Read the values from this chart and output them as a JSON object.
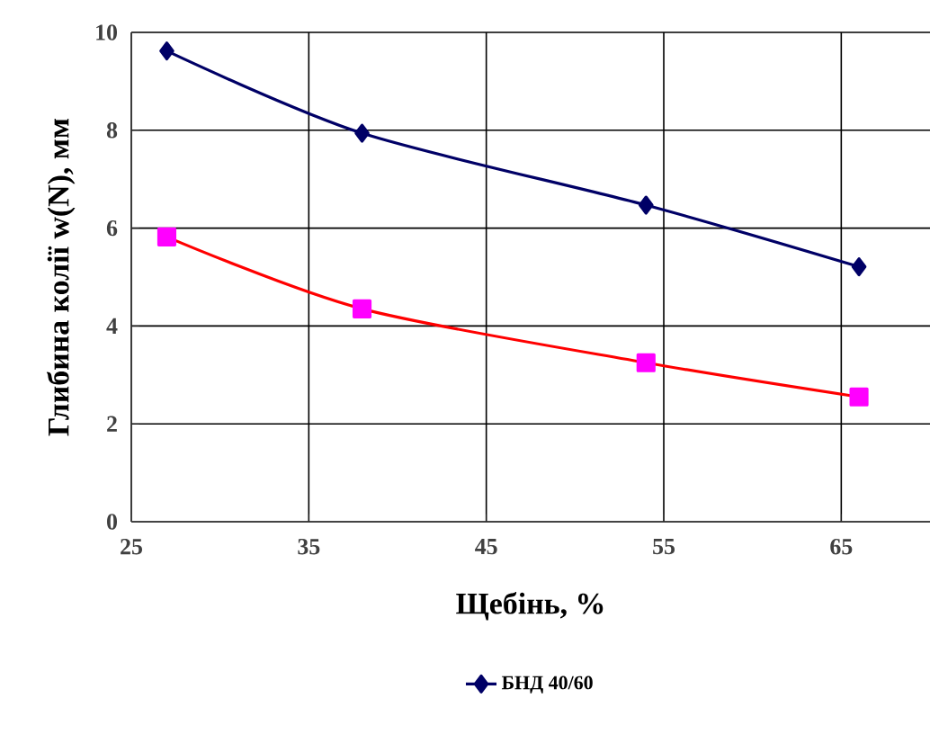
{
  "chart_data": {
    "type": "line",
    "xlabel": "Щебінь, %",
    "ylabel": "Глибина колії w(N), мм",
    "series": [
      {
        "name": "БНД 40/60",
        "color": "#000066",
        "marker": "diamond",
        "x": [
          27,
          38,
          54,
          66
        ],
        "values": [
          9.62,
          7.94,
          6.47,
          5.21
        ]
      },
      {
        "color": "#ff0000",
        "marker": "square",
        "x": [
          27,
          38,
          54,
          66
        ],
        "values": [
          5.82,
          4.35,
          3.25,
          2.55
        ]
      }
    ],
    "xlim": [
      25,
      70
    ],
    "xticks": [
      25,
      35,
      45,
      55,
      65
    ],
    "ylim": [
      0,
      10
    ],
    "yticks": [
      0,
      2,
      4,
      6,
      8,
      10
    ],
    "grid": true,
    "legend": "bottom",
    "line_style": "solid"
  }
}
